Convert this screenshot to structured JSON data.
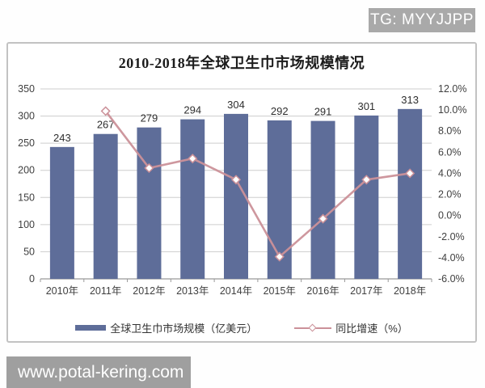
{
  "badges": {
    "tg": "TG: MYYJJPP",
    "watermark": "www.potal-kering.com"
  },
  "chart": {
    "title": "2010-2018年全球卫生巾市场规模情况"
  },
  "legend": {
    "bar_label": "全球卫生巾市场规模（亿美元）",
    "line_label": "同比增速（%）"
  },
  "colors": {
    "bar": "#5e6d99",
    "line": "#cb9199",
    "grid": "#cdcdcd",
    "axis": "#999999",
    "tick_text": "#404040",
    "bar_label_text": "#2e2e2e",
    "badge_gray": "#a9a9a9",
    "watermark_gray": "#9f9f9f"
  },
  "chart_data": {
    "type": "bar",
    "subtype": "bar-line-combo",
    "title": "2010-2018年全球卫生巾市场规模情况",
    "categories": [
      "2010年",
      "2011年",
      "2012年",
      "2013年",
      "2014年",
      "2015年",
      "2016年",
      "2017年",
      "2018年"
    ],
    "series": [
      {
        "name": "全球卫生巾市场规模（亿美元）",
        "type": "bar",
        "axis": "left",
        "color": "#5e6d99",
        "values": [
          243,
          267,
          279,
          294,
          304,
          292,
          291,
          301,
          313
        ]
      },
      {
        "name": "同比增速（%）",
        "type": "line",
        "axis": "right",
        "color": "#cb9199",
        "values": [
          null,
          9.9,
          4.5,
          5.4,
          3.4,
          -3.9,
          -0.3,
          3.4,
          4.0
        ]
      }
    ],
    "left_axis": {
      "min": 0,
      "max": 350,
      "step": 50,
      "ticks": [
        "0",
        "50",
        "100",
        "150",
        "200",
        "250",
        "300",
        "350"
      ]
    },
    "right_axis": {
      "min": -6,
      "max": 12,
      "step": 2,
      "ticks_top_to_bottom": [
        "12.0%",
        "10.0%",
        "8.0%",
        "6.0%",
        "4.0%",
        "2.0%",
        "0.0%",
        "-2.0%",
        "-4.0%",
        "-6.0%"
      ]
    },
    "grid": true,
    "legend_position": "bottom",
    "bar_value_labels_shown": true
  }
}
